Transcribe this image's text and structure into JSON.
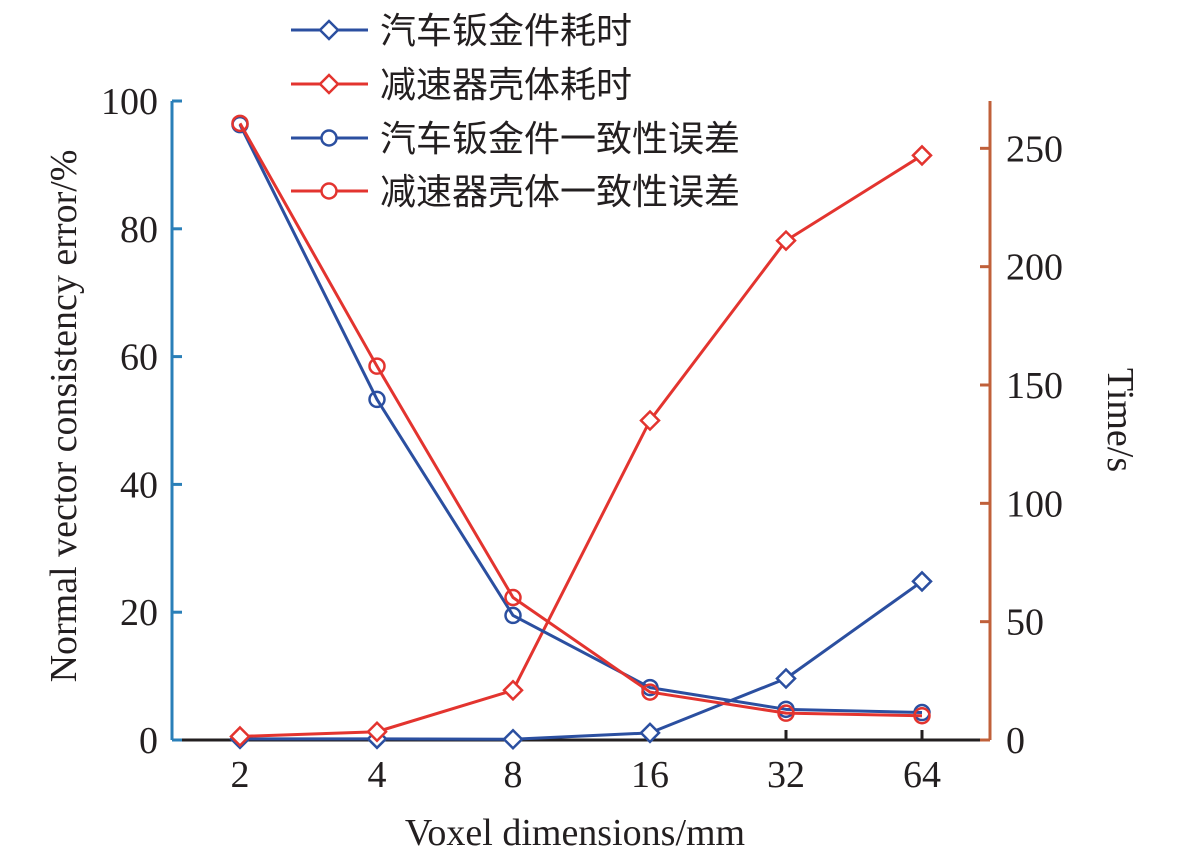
{
  "chart_data": {
    "type": "line",
    "xlabel": "Voxel dimensions/mm",
    "ylabel_left": "Normal vector consistency error/%",
    "ylabel_right": "Time/s",
    "categories": [
      "2",
      "4",
      "8",
      "16",
      "32",
      "64"
    ],
    "y_left_lim": [
      0,
      100
    ],
    "y_left_ticks": [
      "0",
      "20",
      "40",
      "60",
      "80",
      "100"
    ],
    "y_right_lim": [
      0,
      270
    ],
    "y_right_ticks": [
      "0",
      "50",
      "100",
      "150",
      "200",
      "250"
    ],
    "grid": false,
    "legend_position": "top-center",
    "colors": {
      "blue": "#2b4fa0",
      "red": "#e3342f",
      "left_axis": "#2a7fb8",
      "right_axis": "#c0603a",
      "text": "#231f20"
    },
    "series": [
      {
        "name": "汽车钣金件耗时",
        "axis": "right",
        "marker": "diamond",
        "color": "#2b4fa0",
        "values": [
          0.5,
          0.5,
          0.3,
          3,
          26,
          67
        ]
      },
      {
        "name": "减速器壳体耗时",
        "axis": "right",
        "marker": "diamond",
        "color": "#e3342f",
        "values": [
          1.5,
          3.5,
          21,
          135,
          211,
          247
        ]
      },
      {
        "name": "汽车钣金件一致性误差",
        "axis": "left",
        "marker": "circle",
        "color": "#2b4fa0",
        "values": [
          96.3,
          53.3,
          19.5,
          8.2,
          4.8,
          4.3
        ]
      },
      {
        "name": "减速器壳体一致性误差",
        "axis": "left",
        "marker": "circle",
        "color": "#e3342f",
        "values": [
          96.5,
          58.5,
          22.3,
          7.5,
          4.2,
          3.8
        ]
      }
    ]
  }
}
